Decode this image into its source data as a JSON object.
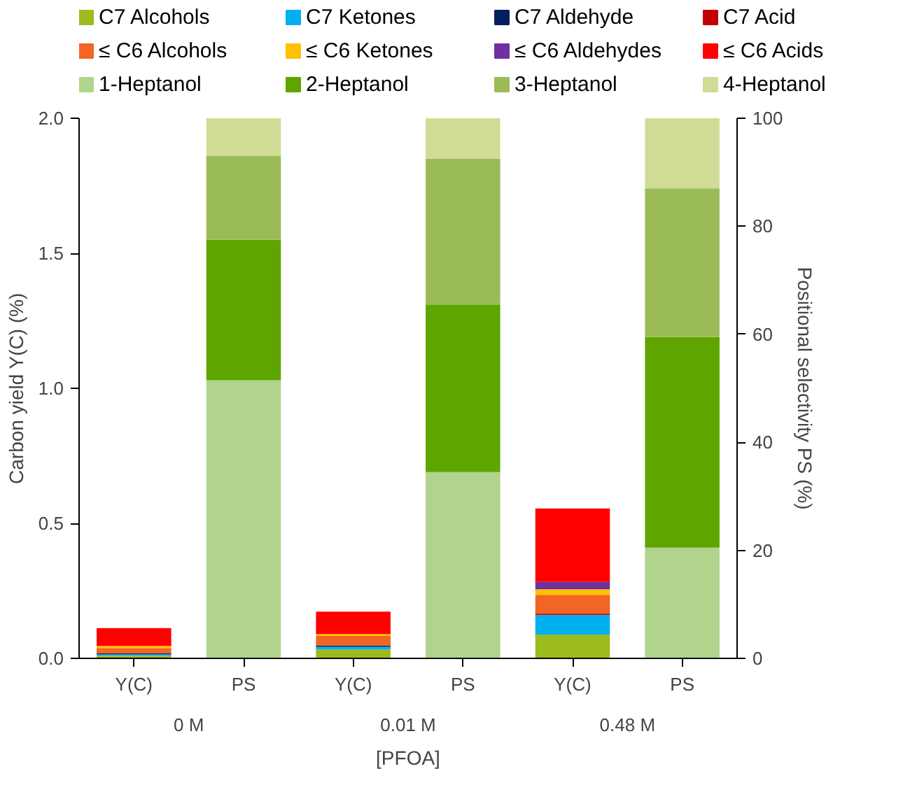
{
  "chart_data": {
    "type": "bar",
    "stacked": true,
    "categories": [
      "Y(C)",
      "PS",
      "Y(C)",
      "PS",
      "Y(C)",
      "PS"
    ],
    "xlabel": "[PFOA]",
    "ylabel": "Carbon yield Y(C) (%)",
    "y2label": "Positional selectivity PS (%)",
    "annotations": [
      "0 M",
      "0.01 M",
      "0.48 M"
    ],
    "ylim": [
      0,
      2
    ],
    "yticks": [
      {
        "value": 0,
        "label": "0.0"
      },
      {
        "value": 0.5,
        "label": "0.5"
      },
      {
        "value": 1,
        "label": "1.0"
      },
      {
        "value": 1.5,
        "label": "1.5"
      },
      {
        "value": 2,
        "label": "2.0"
      }
    ],
    "y2lim": [
      0,
      100
    ],
    "y2ticks": [
      0,
      20,
      40,
      60,
      80,
      100
    ],
    "legend": "top",
    "grid": false,
    "series": [
      {
        "name": "C7 Alcohols",
        "color": "#9bbb1e",
        "values": [
          0.01,
          null,
          0.033,
          null,
          0.088,
          null
        ]
      },
      {
        "name": "C7 Ketones",
        "color": "#00b0f0",
        "values": [
          0.005,
          null,
          0.01,
          null,
          0.072,
          null
        ]
      },
      {
        "name": "C7 Aldehyde",
        "color": "#002060",
        "values": [
          0.003,
          null,
          0.005,
          null,
          0.002,
          null
        ]
      },
      {
        "name": "C7 Acid",
        "color": "#c00000",
        "values": [
          0,
          null,
          0,
          null,
          0.005,
          null
        ]
      },
      {
        "name": "≤ C6 Alcohols",
        "color": "#f26522",
        "values": [
          0.02,
          null,
          0.035,
          null,
          0.068,
          null
        ]
      },
      {
        "name": "≤ C6 Ketones",
        "color": "#ffc000",
        "values": [
          0.008,
          null,
          0.007,
          null,
          0.021,
          null
        ]
      },
      {
        "name": "≤ C6 Aldehydes",
        "color": "#7030a0",
        "values": [
          0,
          null,
          0,
          null,
          0.027,
          null
        ]
      },
      {
        "name": "≤ C6 Acids",
        "color": "#ff0000",
        "values": [
          0.066,
          null,
          0.083,
          null,
          0.272,
          null
        ]
      },
      {
        "name": "1-Heptanol",
        "color": "#b0d48c",
        "axis": "y2",
        "values": [
          null,
          51.5,
          null,
          34.5,
          null,
          20.5
        ]
      },
      {
        "name": "2-Heptanol",
        "color": "#5ea500",
        "axis": "y2",
        "values": [
          null,
          26,
          null,
          31,
          null,
          39
        ]
      },
      {
        "name": "3-Heptanol",
        "color": "#9bbb59",
        "axis": "y2",
        "values": [
          null,
          15.5,
          null,
          27,
          null,
          27.5
        ]
      },
      {
        "name": "4-Heptanol",
        "color": "#d0dc96",
        "axis": "y2",
        "values": [
          null,
          7,
          null,
          7.5,
          null,
          13
        ]
      }
    ]
  }
}
